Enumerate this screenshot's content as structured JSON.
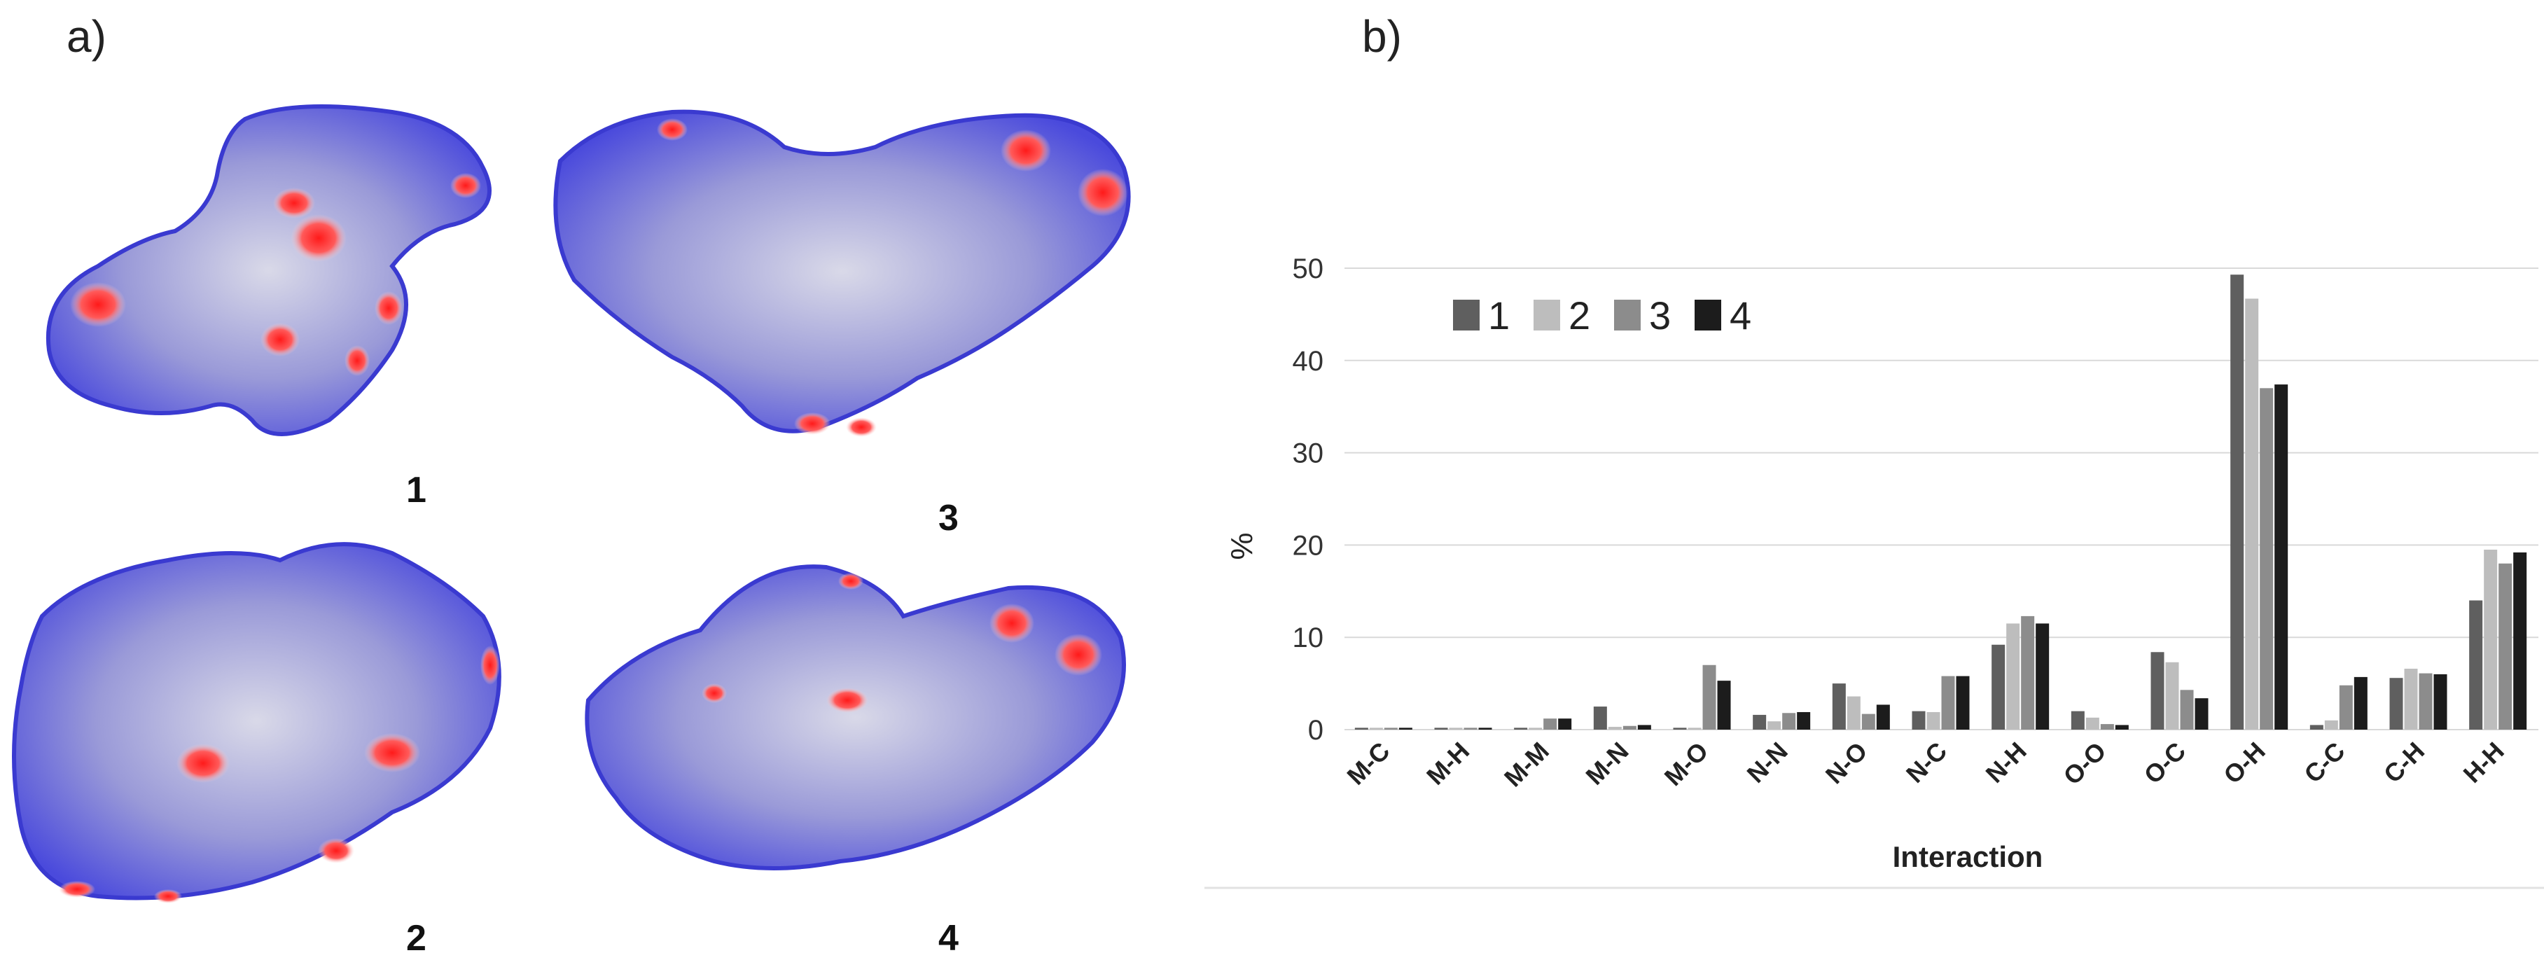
{
  "panel_a": {
    "label": "a)",
    "surfaces": [
      {
        "label": "1"
      },
      {
        "label": "3"
      },
      {
        "label": "2"
      },
      {
        "label": "4"
      }
    ]
  },
  "panel_b": {
    "label": "b)"
  },
  "chart_data": {
    "type": "bar",
    "title": "",
    "xlabel": "Interaction",
    "ylabel": "%",
    "ylim": [
      0,
      50
    ],
    "yticks": [
      0,
      10,
      20,
      30,
      40,
      50
    ],
    "grid": true,
    "legend_position": "top-left",
    "categories": [
      "M-C",
      "M-H",
      "M-M",
      "M-N",
      "M-O",
      "N-N",
      "N-O",
      "N-C",
      "N-H",
      "O-O",
      "O-C",
      "O-H",
      "C-C",
      "C-H",
      "H-H"
    ],
    "series": [
      {
        "name": "1",
        "color": "#5f5f5f",
        "values": [
          0.2,
          0.2,
          0.2,
          2.5,
          0.2,
          1.6,
          5.0,
          2.0,
          9.2,
          2.0,
          8.4,
          49.3,
          0.5,
          5.6,
          14.0
        ]
      },
      {
        "name": "2",
        "color": "#bdbdbd",
        "values": [
          0.2,
          0.2,
          0.2,
          0.3,
          0.2,
          0.9,
          3.6,
          1.9,
          11.5,
          1.3,
          7.3,
          46.7,
          1.0,
          6.6,
          19.5
        ]
      },
      {
        "name": "3",
        "color": "#8c8c8c",
        "values": [
          0.2,
          0.2,
          1.2,
          0.4,
          7.0,
          1.8,
          1.7,
          5.8,
          12.3,
          0.6,
          4.3,
          37.0,
          4.8,
          6.1,
          18.0
        ]
      },
      {
        "name": "4",
        "color": "#1c1c1c",
        "values": [
          0.2,
          0.2,
          1.2,
          0.5,
          5.3,
          1.9,
          2.7,
          5.8,
          11.5,
          0.5,
          3.4,
          37.4,
          5.7,
          6.0,
          19.2
        ]
      }
    ]
  }
}
